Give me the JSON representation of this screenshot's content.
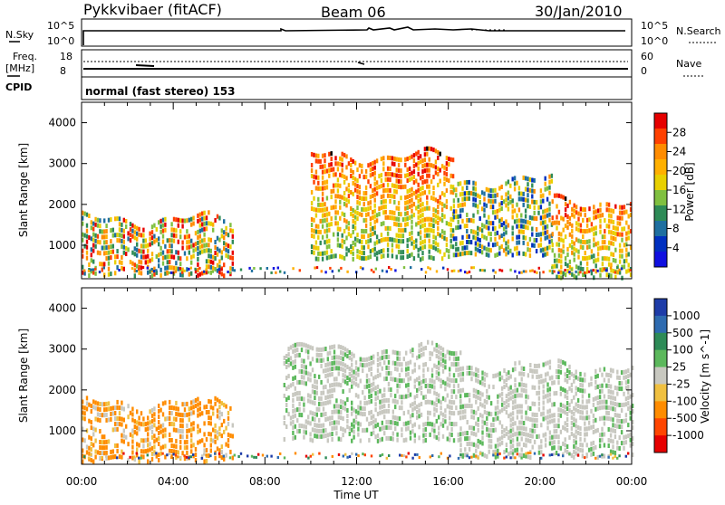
{
  "header": {
    "station": "Pykkvibaer (fitACF)",
    "beam": "Beam 06",
    "date": "30/Jan/2010"
  },
  "top_panels": {
    "nsky_label": "N.Sky",
    "nsky_ticks": [
      "10^5",
      "10^0"
    ],
    "nsearch_label": "N.Search",
    "nsearch_ticks": [
      "10^5",
      "10^0"
    ],
    "freq_label_1": "Freq.",
    "freq_label_2": "[MHz]",
    "freq_ticks": [
      "18",
      "8"
    ],
    "nave_label": "Nave",
    "nave_ticks": [
      "60",
      "0"
    ],
    "cpid_label": "CPID",
    "cpid_text": "normal (fast stereo) 153"
  },
  "chart_data": [
    {
      "type": "heatmap",
      "title": "",
      "xlabel": "Time UT",
      "ylabel": "Slant Range [km]",
      "x_ticks": [
        "00:00",
        "04:00",
        "08:00",
        "12:00",
        "16:00",
        "20:00",
        "00:00"
      ],
      "x_range_hours": [
        0,
        24
      ],
      "ylim": [
        180,
        4500
      ],
      "y_ticks": [
        1000,
        2000,
        3000,
        4000
      ],
      "colorbar_label": "Power [dB]",
      "colorbar_ticks": [
        "28",
        "24",
        "20",
        "16",
        "12",
        "8",
        "4"
      ],
      "colorbar_colors": [
        "#e60000",
        "#ff4000",
        "#ff8c00",
        "#ffb000",
        "#e8d000",
        "#80c040",
        "#2e8b57",
        "#1e6fa0",
        "#0030c0",
        "#1010e0"
      ],
      "regions": [
        {
          "t0": 0.0,
          "t1": 6.6,
          "r0": 300,
          "r1": 1650,
          "level": "mixed-high"
        },
        {
          "t0": 10.0,
          "t1": 16.2,
          "r0": 700,
          "r1": 3200,
          "level": "high"
        },
        {
          "t0": 16.2,
          "t1": 20.5,
          "r0": 800,
          "r1": 2600,
          "level": "mid"
        },
        {
          "t0": 20.5,
          "t1": 24.0,
          "r0": 250,
          "r1": 2100,
          "level": "high"
        }
      ]
    },
    {
      "type": "heatmap",
      "title": "",
      "xlabel": "Time UT",
      "ylabel": "Slant Range [km]",
      "x_ticks": [
        "00:00",
        "04:00",
        "08:00",
        "12:00",
        "16:00",
        "20:00",
        "00:00"
      ],
      "x_range_hours": [
        0,
        24
      ],
      "ylim": [
        180,
        4500
      ],
      "y_ticks": [
        1000,
        2000,
        3000,
        4000
      ],
      "colorbar_label": "Velocity [m s^-1]",
      "colorbar_ticks": [
        "1000",
        "500",
        "100",
        "25",
        "-25",
        "-100",
        "-500",
        "-1000"
      ],
      "colorbar_colors": [
        "#1e3ca8",
        "#2e6bb0",
        "#2e8b57",
        "#5cb85c",
        "#c8c8c0",
        "#f0c040",
        "#ff8c00",
        "#ff4500",
        "#e60000"
      ],
      "regions": [
        {
          "t0": 0.0,
          "t1": 6.6,
          "r0": 300,
          "r1": 1700,
          "level": "negative"
        },
        {
          "t0": 8.8,
          "t1": 16.5,
          "r0": 800,
          "r1": 3000,
          "level": "near-zero"
        },
        {
          "t0": 16.5,
          "t1": 24.0,
          "r0": 400,
          "r1": 2600,
          "level": "near-zero"
        }
      ]
    }
  ]
}
